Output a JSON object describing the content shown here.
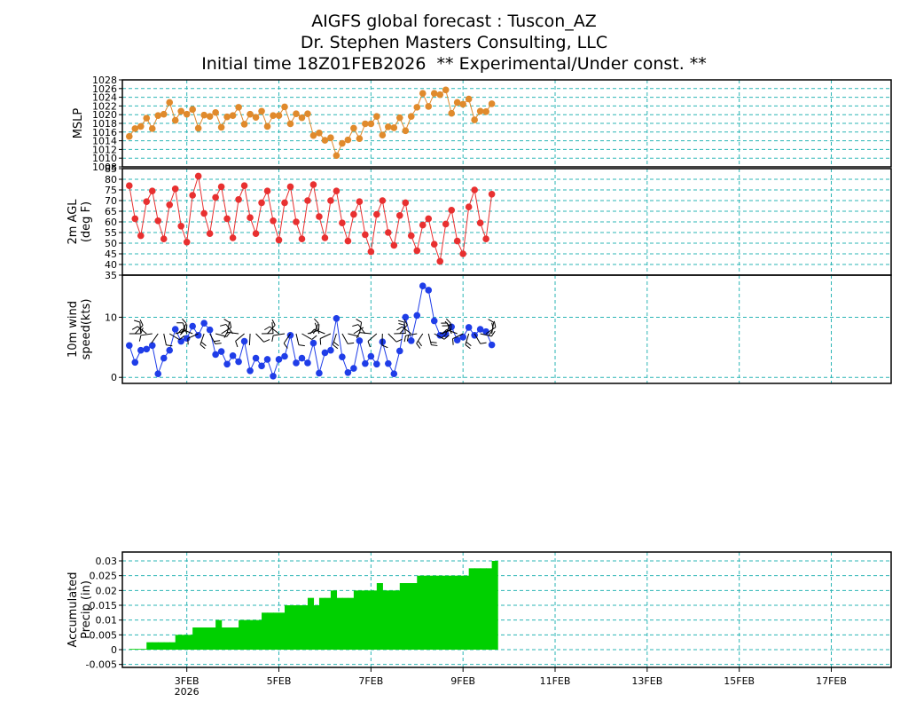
{
  "header": {
    "line1": "AIGFS global forecast : Tuscon_AZ",
    "line2": "Dr. Stephen Masters Consulting, LLC",
    "line3": "Initial time 18Z01FEB2026  ** Experimental/Under const. **"
  },
  "colors": {
    "grid": "#2bb5b5",
    "mslp": "#e08a2c",
    "temp": "#e83030",
    "wind": "#1f3de8",
    "precip": "#00d000"
  },
  "chart_data": [
    {
      "type": "line",
      "ylabel": "MSLP",
      "ylim": [
        1008,
        1028
      ],
      "ticks": [
        1008,
        1010,
        1012,
        1014,
        1016,
        1018,
        1020,
        1022,
        1024,
        1026,
        1028
      ],
      "tick_labels": [
        "1008",
        "1010",
        "1012",
        "1014",
        "1016",
        "1018",
        "1020",
        "1022",
        "1024",
        "1026",
        "1028"
      ],
      "x_start_day": 1.75,
      "x_step_days": 0.125,
      "values": [
        1015.0,
        1016.8,
        1017.3,
        1019.2,
        1016.8,
        1019.8,
        1020.1,
        1022.8,
        1018.7,
        1020.8,
        1020.1,
        1021.2,
        1016.9,
        1019.9,
        1019.6,
        1020.5,
        1017.1,
        1019.5,
        1019.8,
        1021.7,
        1017.8,
        1020.1,
        1019.4,
        1020.8,
        1017.3,
        1019.8,
        1019.8,
        1021.8,
        1017.9,
        1020.2,
        1019.3,
        1020.2,
        1015.2,
        1015.8,
        1014.1,
        1014.7,
        1010.6,
        1013.4,
        1014.2,
        1016.9,
        1014.5,
        1017.9,
        1017.9,
        1019.6,
        1015.3,
        1017.2,
        1017.0,
        1019.3,
        1016.3,
        1019.6,
        1021.7,
        1024.9,
        1021.9,
        1024.9,
        1024.6,
        1025.7,
        1020.3,
        1022.8,
        1022.4,
        1023.6,
        1018.8,
        1020.8,
        1020.7,
        1022.5
      ]
    },
    {
      "type": "line",
      "ylabel": "2m AGL (deg F)",
      "ylim": [
        35,
        85
      ],
      "ticks": [
        35,
        40,
        45,
        50,
        55,
        60,
        65,
        70,
        75,
        80,
        85
      ],
      "tick_labels": [
        "35",
        "40",
        "45",
        "50",
        "55",
        "60",
        "65",
        "70",
        "75",
        "80",
        "85"
      ],
      "x_start_day": 1.75,
      "x_step_days": 0.125,
      "values": [
        77.0,
        61.5,
        53.5,
        69.5,
        74.5,
        60.5,
        52.0,
        68.0,
        75.5,
        58.0,
        50.5,
        72.5,
        81.5,
        64.0,
        54.5,
        71.5,
        76.5,
        61.5,
        52.5,
        70.5,
        77.0,
        62.0,
        54.5,
        69.0,
        74.5,
        60.5,
        51.5,
        69.0,
        76.5,
        60.0,
        52.0,
        70.0,
        77.5,
        62.5,
        52.5,
        70.0,
        74.5,
        59.5,
        51.0,
        63.5,
        69.5,
        54.0,
        46.0,
        63.5,
        70.0,
        55.0,
        49.0,
        63.0,
        69.0,
        53.5,
        46.5,
        58.5,
        61.5,
        49.5,
        41.5,
        59.0,
        65.5,
        51.0,
        45.0,
        67.0,
        75.0,
        59.5,
        52.0,
        73.0
      ]
    },
    {
      "type": "line",
      "ylabel": "10m wind speed(kts)",
      "ylim": [
        -1,
        17
      ],
      "ticks": [
        0,
        10
      ],
      "tick_labels": [
        "0",
        "10"
      ],
      "x_start_day": 1.75,
      "x_step_days": 0.125,
      "values": [
        5.3,
        2.5,
        4.5,
        4.7,
        5.3,
        0.6,
        3.2,
        4.5,
        8.0,
        6.0,
        6.5,
        8.5,
        7.0,
        9.0,
        7.9,
        3.8,
        4.3,
        2.2,
        3.6,
        2.6,
        6.0,
        1.1,
        3.2,
        1.9,
        3.0,
        0.2,
        3.0,
        3.5,
        7.0,
        2.4,
        3.2,
        2.4,
        5.7,
        0.7,
        4.1,
        4.5,
        9.8,
        3.4,
        0.8,
        1.5,
        6.1,
        2.3,
        3.5,
        2.2,
        5.9,
        2.3,
        0.6,
        4.4,
        10.0,
        6.1,
        10.3,
        15.2,
        14.5,
        9.4,
        7.0,
        7.2,
        8.4,
        6.2,
        6.7,
        8.3,
        7.0,
        8.0,
        7.6,
        5.4
      ]
    },
    {
      "type": "bar",
      "ylabel": "Accumulated Precip (in)",
      "ylim": [
        -0.006,
        0.033
      ],
      "ticks": [
        -0.005,
        0,
        0.005,
        0.01,
        0.015,
        0.02,
        0.025,
        0.03
      ],
      "tick_labels": [
        "-0.005",
        "0",
        "0.005",
        "0.01",
        "0.015",
        "0.02",
        "0.025",
        "0.03"
      ],
      "x_start_day": 1.75,
      "x_step_days": 0.125,
      "values": [
        0.0,
        0.0,
        0.0,
        0.0025,
        0.0025,
        0.0025,
        0.0025,
        0.0025,
        0.005,
        0.005,
        0.005,
        0.0075,
        0.0075,
        0.0075,
        0.0075,
        0.01,
        0.0075,
        0.0075,
        0.0075,
        0.01,
        0.01,
        0.01,
        0.01,
        0.0125,
        0.0125,
        0.0125,
        0.0125,
        0.015,
        0.015,
        0.015,
        0.015,
        0.0175,
        0.015,
        0.0175,
        0.0175,
        0.02,
        0.0175,
        0.0175,
        0.0175,
        0.02,
        0.02,
        0.02,
        0.02,
        0.0225,
        0.02,
        0.02,
        0.02,
        0.0225,
        0.0225,
        0.0225,
        0.025,
        0.025,
        0.025,
        0.025,
        0.025,
        0.025,
        0.025,
        0.025,
        0.025,
        0.0275,
        0.0275,
        0.0275,
        0.0275,
        0.03
      ]
    }
  ],
  "x_axis": {
    "xlim_days": [
      1.6,
      18.3
    ],
    "ticks": [
      {
        "day": 3,
        "label": "3FEB",
        "sub": "2026"
      },
      {
        "day": 5,
        "label": "5FEB"
      },
      {
        "day": 7,
        "label": "7FEB"
      },
      {
        "day": 9,
        "label": "9FEB"
      },
      {
        "day": 11,
        "label": "11FEB"
      },
      {
        "day": 13,
        "label": "13FEB"
      },
      {
        "day": 15,
        "label": "15FEB"
      },
      {
        "day": 17,
        "label": "17FEB"
      }
    ]
  }
}
